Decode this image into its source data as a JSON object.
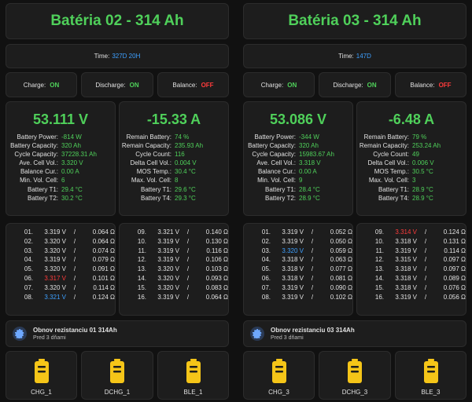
{
  "colors": {
    "green": "#4fd05a",
    "red": "#ff3b3b",
    "blue": "#3ea0ff",
    "yellow": "#f5c518"
  },
  "left": {
    "title": "Batéria 02 - 314 Ah",
    "time_label": "Time:",
    "time_value": "327D 20H",
    "status": {
      "charge_label": "Charge:",
      "charge": "ON",
      "discharge_label": "Discharge:",
      "discharge": "ON",
      "balance_label": "Balance:",
      "balance": "OFF"
    },
    "voltage": "53.111 V",
    "current": "-15.33 A",
    "info_left": [
      {
        "k": "Battery Power:",
        "v": "-814 W",
        "c": "green"
      },
      {
        "k": "Battery Capacity:",
        "v": "320 Ah",
        "c": "green"
      },
      {
        "k": "Cycle Capacity:",
        "v": "37228.31 Ah",
        "c": "green"
      },
      {
        "k": "Ave. Cell Vol.:",
        "v": "3.320 V",
        "c": "green"
      },
      {
        "k": "Balance Cur.:",
        "v": "0.00 A",
        "c": "green"
      },
      {
        "k": "Min. Vol. Cell:",
        "v": "6",
        "c": "green"
      },
      {
        "k": "Battery T1:",
        "v": "29.4 °C",
        "c": "green"
      },
      {
        "k": "Battery T2:",
        "v": "30.2 °C",
        "c": "green"
      }
    ],
    "info_right": [
      {
        "k": "Remain Battery:",
        "v": "74 %",
        "c": "green"
      },
      {
        "k": "Remain Capacity:",
        "v": "235.93 Ah",
        "c": "green"
      },
      {
        "k": "Cycle Count:",
        "v": "116",
        "c": "green"
      },
      {
        "k": "Delta Cell Vol.:",
        "v": "0.004 V",
        "c": "green"
      },
      {
        "k": "MOS Temp.:",
        "v": "30.4 °C",
        "c": "green"
      },
      {
        "k": "Max. Vol. Cell:",
        "v": "8",
        "c": "green"
      },
      {
        "k": "Battery T1:",
        "v": "29.6 °C",
        "c": "green"
      },
      {
        "k": "Battery T4:",
        "v": "29.3 °C",
        "c": "green"
      }
    ],
    "cells_a": [
      {
        "n": "01.",
        "v": "3.319 V",
        "r": "0.064 Ω",
        "c": "white"
      },
      {
        "n": "02.",
        "v": "3.320 V",
        "r": "0.064 Ω",
        "c": "white"
      },
      {
        "n": "03.",
        "v": "3.320 V",
        "r": "0.074 Ω",
        "c": "white"
      },
      {
        "n": "04.",
        "v": "3.319 V",
        "r": "0.079 Ω",
        "c": "white"
      },
      {
        "n": "05.",
        "v": "3.320 V",
        "r": "0.091 Ω",
        "c": "white"
      },
      {
        "n": "06.",
        "v": "3.317 V",
        "r": "0.101 Ω",
        "c": "red"
      },
      {
        "n": "07.",
        "v": "3.320 V",
        "r": "0.114 Ω",
        "c": "white"
      },
      {
        "n": "08.",
        "v": "3.321 V",
        "r": "0.124 Ω",
        "c": "blue"
      }
    ],
    "cells_b": [
      {
        "n": "09.",
        "v": "3.321 V",
        "r": "0.140 Ω",
        "c": "white"
      },
      {
        "n": "10.",
        "v": "3.319 V",
        "r": "0.130 Ω",
        "c": "white"
      },
      {
        "n": "11.",
        "v": "3.319 V",
        "r": "0.116 Ω",
        "c": "white"
      },
      {
        "n": "12.",
        "v": "3.319 V",
        "r": "0.106 Ω",
        "c": "white"
      },
      {
        "n": "13.",
        "v": "3.320 V",
        "r": "0.103 Ω",
        "c": "white"
      },
      {
        "n": "14.",
        "v": "3.320 V",
        "r": "0.093 Ω",
        "c": "white"
      },
      {
        "n": "15.",
        "v": "3.320 V",
        "r": "0.083 Ω",
        "c": "white"
      },
      {
        "n": "16.",
        "v": "3.319 V",
        "r": "0.064 Ω",
        "c": "white"
      }
    ],
    "notif_title": "Obnov rezistanciu 01 314Ah",
    "notif_sub": "Pred 3 dňami",
    "buttons": [
      "CHG_1",
      "DCHG_1",
      "BLE_1"
    ]
  },
  "right": {
    "title": "Batéria 03 - 314 Ah",
    "time_label": "Time:",
    "time_value": "147D",
    "status": {
      "charge_label": "Charge:",
      "charge": "ON",
      "discharge_label": "Discharge:",
      "discharge": "ON",
      "balance_label": "Balance:",
      "balance": "OFF"
    },
    "voltage": "53.086 V",
    "current": "-6.48 A",
    "info_left": [
      {
        "k": "Battery Power:",
        "v": "-344 W",
        "c": "green"
      },
      {
        "k": "Battery Capacity:",
        "v": "320 Ah",
        "c": "green"
      },
      {
        "k": "Cycle Capacity:",
        "v": "15983.67 Ah",
        "c": "green"
      },
      {
        "k": "Ave. Cell Vol.:",
        "v": "3.318 V",
        "c": "green"
      },
      {
        "k": "Balance Cur.:",
        "v": "0.00 A",
        "c": "green"
      },
      {
        "k": "Min. Vol. Cell:",
        "v": "9",
        "c": "green"
      },
      {
        "k": "Battery T1:",
        "v": "28.4 °C",
        "c": "green"
      },
      {
        "k": "Battery T2:",
        "v": "28.9 °C",
        "c": "green"
      }
    ],
    "info_right": [
      {
        "k": "Remain Battery:",
        "v": "79 %",
        "c": "green"
      },
      {
        "k": "Remain Capacity:",
        "v": "253.24 Ah",
        "c": "green"
      },
      {
        "k": "Cycle Count:",
        "v": "49",
        "c": "green"
      },
      {
        "k": "Delta Cell Vol.:",
        "v": "0.006 V",
        "c": "green"
      },
      {
        "k": "MOS Temp.:",
        "v": "30.5 °C",
        "c": "green"
      },
      {
        "k": "Max. Vol. Cell:",
        "v": "3",
        "c": "green"
      },
      {
        "k": "Battery T1:",
        "v": "28.9 °C",
        "c": "green"
      },
      {
        "k": "Battery T4:",
        "v": "28.9 °C",
        "c": "green"
      }
    ],
    "cells_a": [
      {
        "n": "01.",
        "v": "3.319 V",
        "r": "0.052 Ω",
        "c": "white"
      },
      {
        "n": "02.",
        "v": "3.319 V",
        "r": "0.050 Ω",
        "c": "white"
      },
      {
        "n": "03.",
        "v": "3.320 V",
        "r": "0.059 Ω",
        "c": "blue"
      },
      {
        "n": "04.",
        "v": "3.318 V",
        "r": "0.063 Ω",
        "c": "white"
      },
      {
        "n": "05.",
        "v": "3.318 V",
        "r": "0.077 Ω",
        "c": "white"
      },
      {
        "n": "06.",
        "v": "3.318 V",
        "r": "0.081 Ω",
        "c": "white"
      },
      {
        "n": "07.",
        "v": "3.319 V",
        "r": "0.090 Ω",
        "c": "white"
      },
      {
        "n": "08.",
        "v": "3.319 V",
        "r": "0.102 Ω",
        "c": "white"
      }
    ],
    "cells_b": [
      {
        "n": "09.",
        "v": "3.314 V",
        "r": "0.124 Ω",
        "c": "red"
      },
      {
        "n": "10.",
        "v": "3.318 V",
        "r": "0.131 Ω",
        "c": "white"
      },
      {
        "n": "11.",
        "v": "3.319 V",
        "r": "0.114 Ω",
        "c": "white"
      },
      {
        "n": "12.",
        "v": "3.315 V",
        "r": "0.097 Ω",
        "c": "white"
      },
      {
        "n": "13.",
        "v": "3.318 V",
        "r": "0.097 Ω",
        "c": "white"
      },
      {
        "n": "14.",
        "v": "3.318 V",
        "r": "0.089 Ω",
        "c": "white"
      },
      {
        "n": "15.",
        "v": "3.318 V",
        "r": "0.076 Ω",
        "c": "white"
      },
      {
        "n": "16.",
        "v": "3.319 V",
        "r": "0.056 Ω",
        "c": "white"
      }
    ],
    "notif_title": "Obnov rezistanciu 03 314Ah",
    "notif_sub": "Pred 3 dňami",
    "buttons": [
      "CHG_3",
      "DCHG_3",
      "BLE_3"
    ]
  },
  "icons": {
    "gear": "gear-icon",
    "battery": "battery-icon"
  }
}
